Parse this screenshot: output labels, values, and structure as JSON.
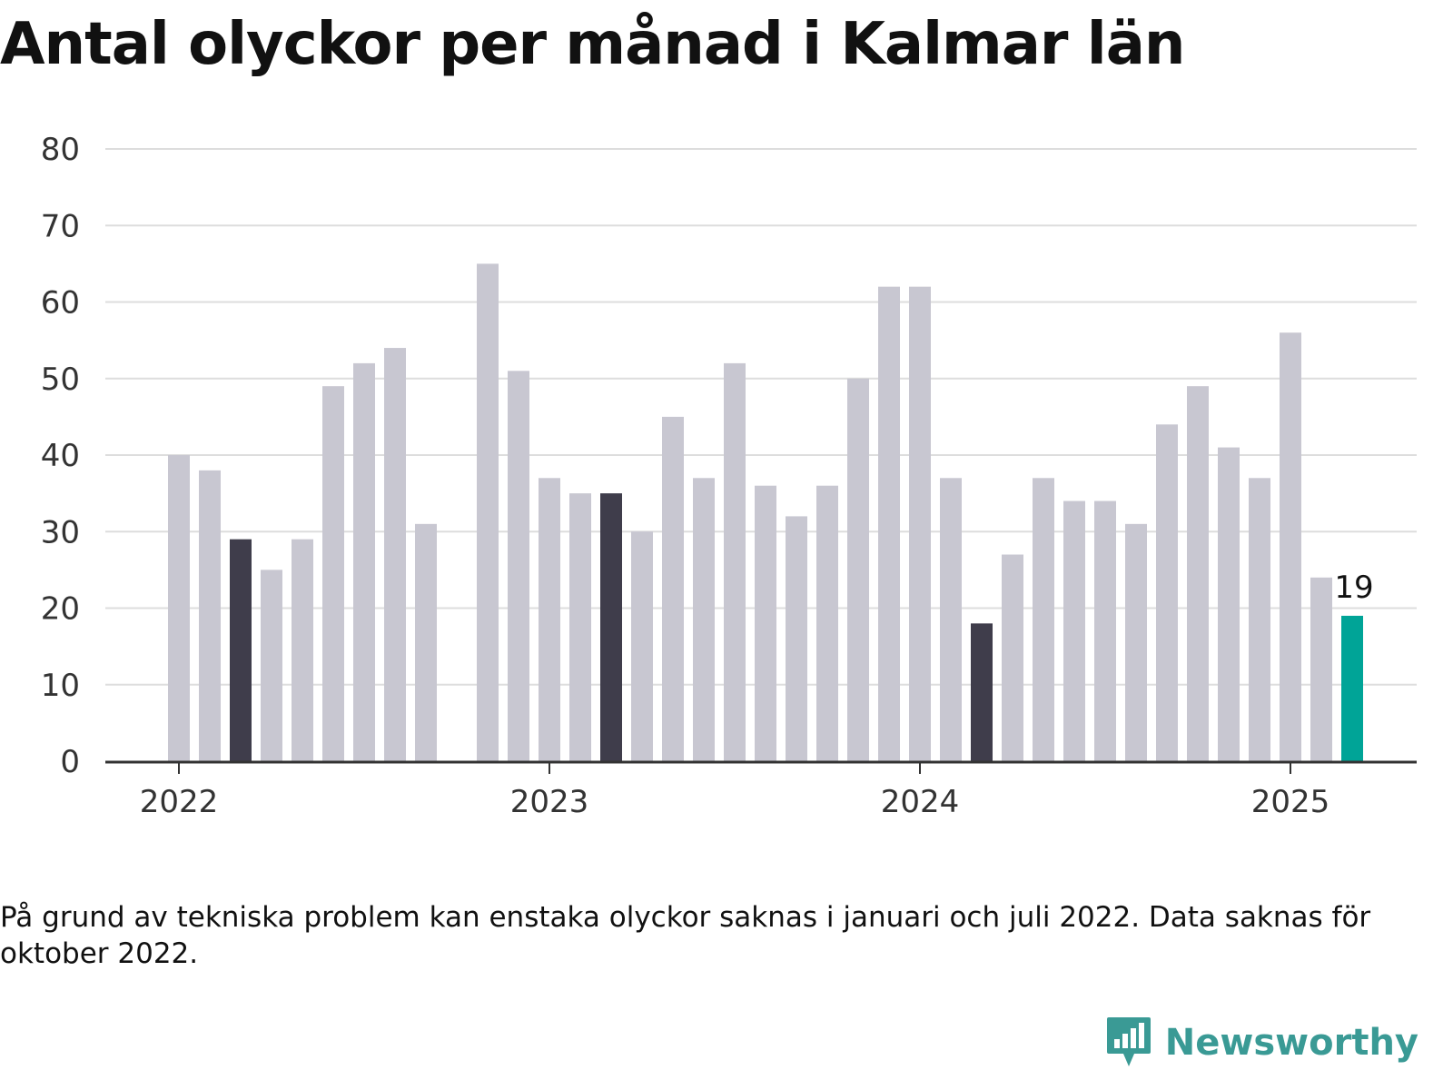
{
  "title": "Antal olyckor per månad i Kalmar län",
  "footnote": "På grund av tekniska problem kan enstaka olyckor saknas i januari och juli 2022. Data saknas för oktober 2022.",
  "brand": {
    "name": "Newsworthy",
    "logo_icon": "bar-chart-speech-bubble-icon"
  },
  "colors": {
    "default_bar": "#c8c7d1",
    "highlight_bar": "#3f3d4b",
    "latest_bar": "#00a497",
    "grid": "#dddddd",
    "axis": "#333333",
    "brand": "#3a9a95"
  },
  "chart_data": {
    "type": "bar",
    "title": "Antal olyckor per månad i Kalmar län",
    "xlabel": "",
    "ylabel": "",
    "ylim": [
      0,
      80
    ],
    "yticks": [
      0,
      10,
      20,
      30,
      40,
      50,
      60,
      70,
      80
    ],
    "xticks": [
      "2022",
      "2023",
      "2024",
      "2025"
    ],
    "grid": true,
    "legend": "none",
    "categories": [
      "2022-01",
      "2022-02",
      "2022-03",
      "2022-04",
      "2022-05",
      "2022-06",
      "2022-07",
      "2022-08",
      "2022-09",
      "2022-10",
      "2022-11",
      "2022-12",
      "2023-01",
      "2023-02",
      "2023-03",
      "2023-04",
      "2023-05",
      "2023-06",
      "2023-07",
      "2023-08",
      "2023-09",
      "2023-10",
      "2023-11",
      "2023-12",
      "2024-01",
      "2024-02",
      "2024-03",
      "2024-04",
      "2024-05",
      "2024-06",
      "2024-07",
      "2024-08",
      "2024-09",
      "2024-10",
      "2024-11",
      "2024-12",
      "2025-01",
      "2025-02",
      "2025-03"
    ],
    "values": [
      40,
      38,
      29,
      25,
      29,
      49,
      52,
      54,
      31,
      null,
      65,
      51,
      37,
      35,
      35,
      30,
      45,
      37,
      52,
      36,
      32,
      36,
      50,
      62,
      62,
      37,
      18,
      27,
      37,
      34,
      34,
      31,
      44,
      49,
      41,
      37,
      56,
      24,
      19
    ],
    "highlighted": [
      "2022-03",
      "2023-03",
      "2024-03"
    ],
    "latest": "2025-03",
    "annotations": [
      {
        "category": "2025-03",
        "text": "19"
      }
    ]
  }
}
